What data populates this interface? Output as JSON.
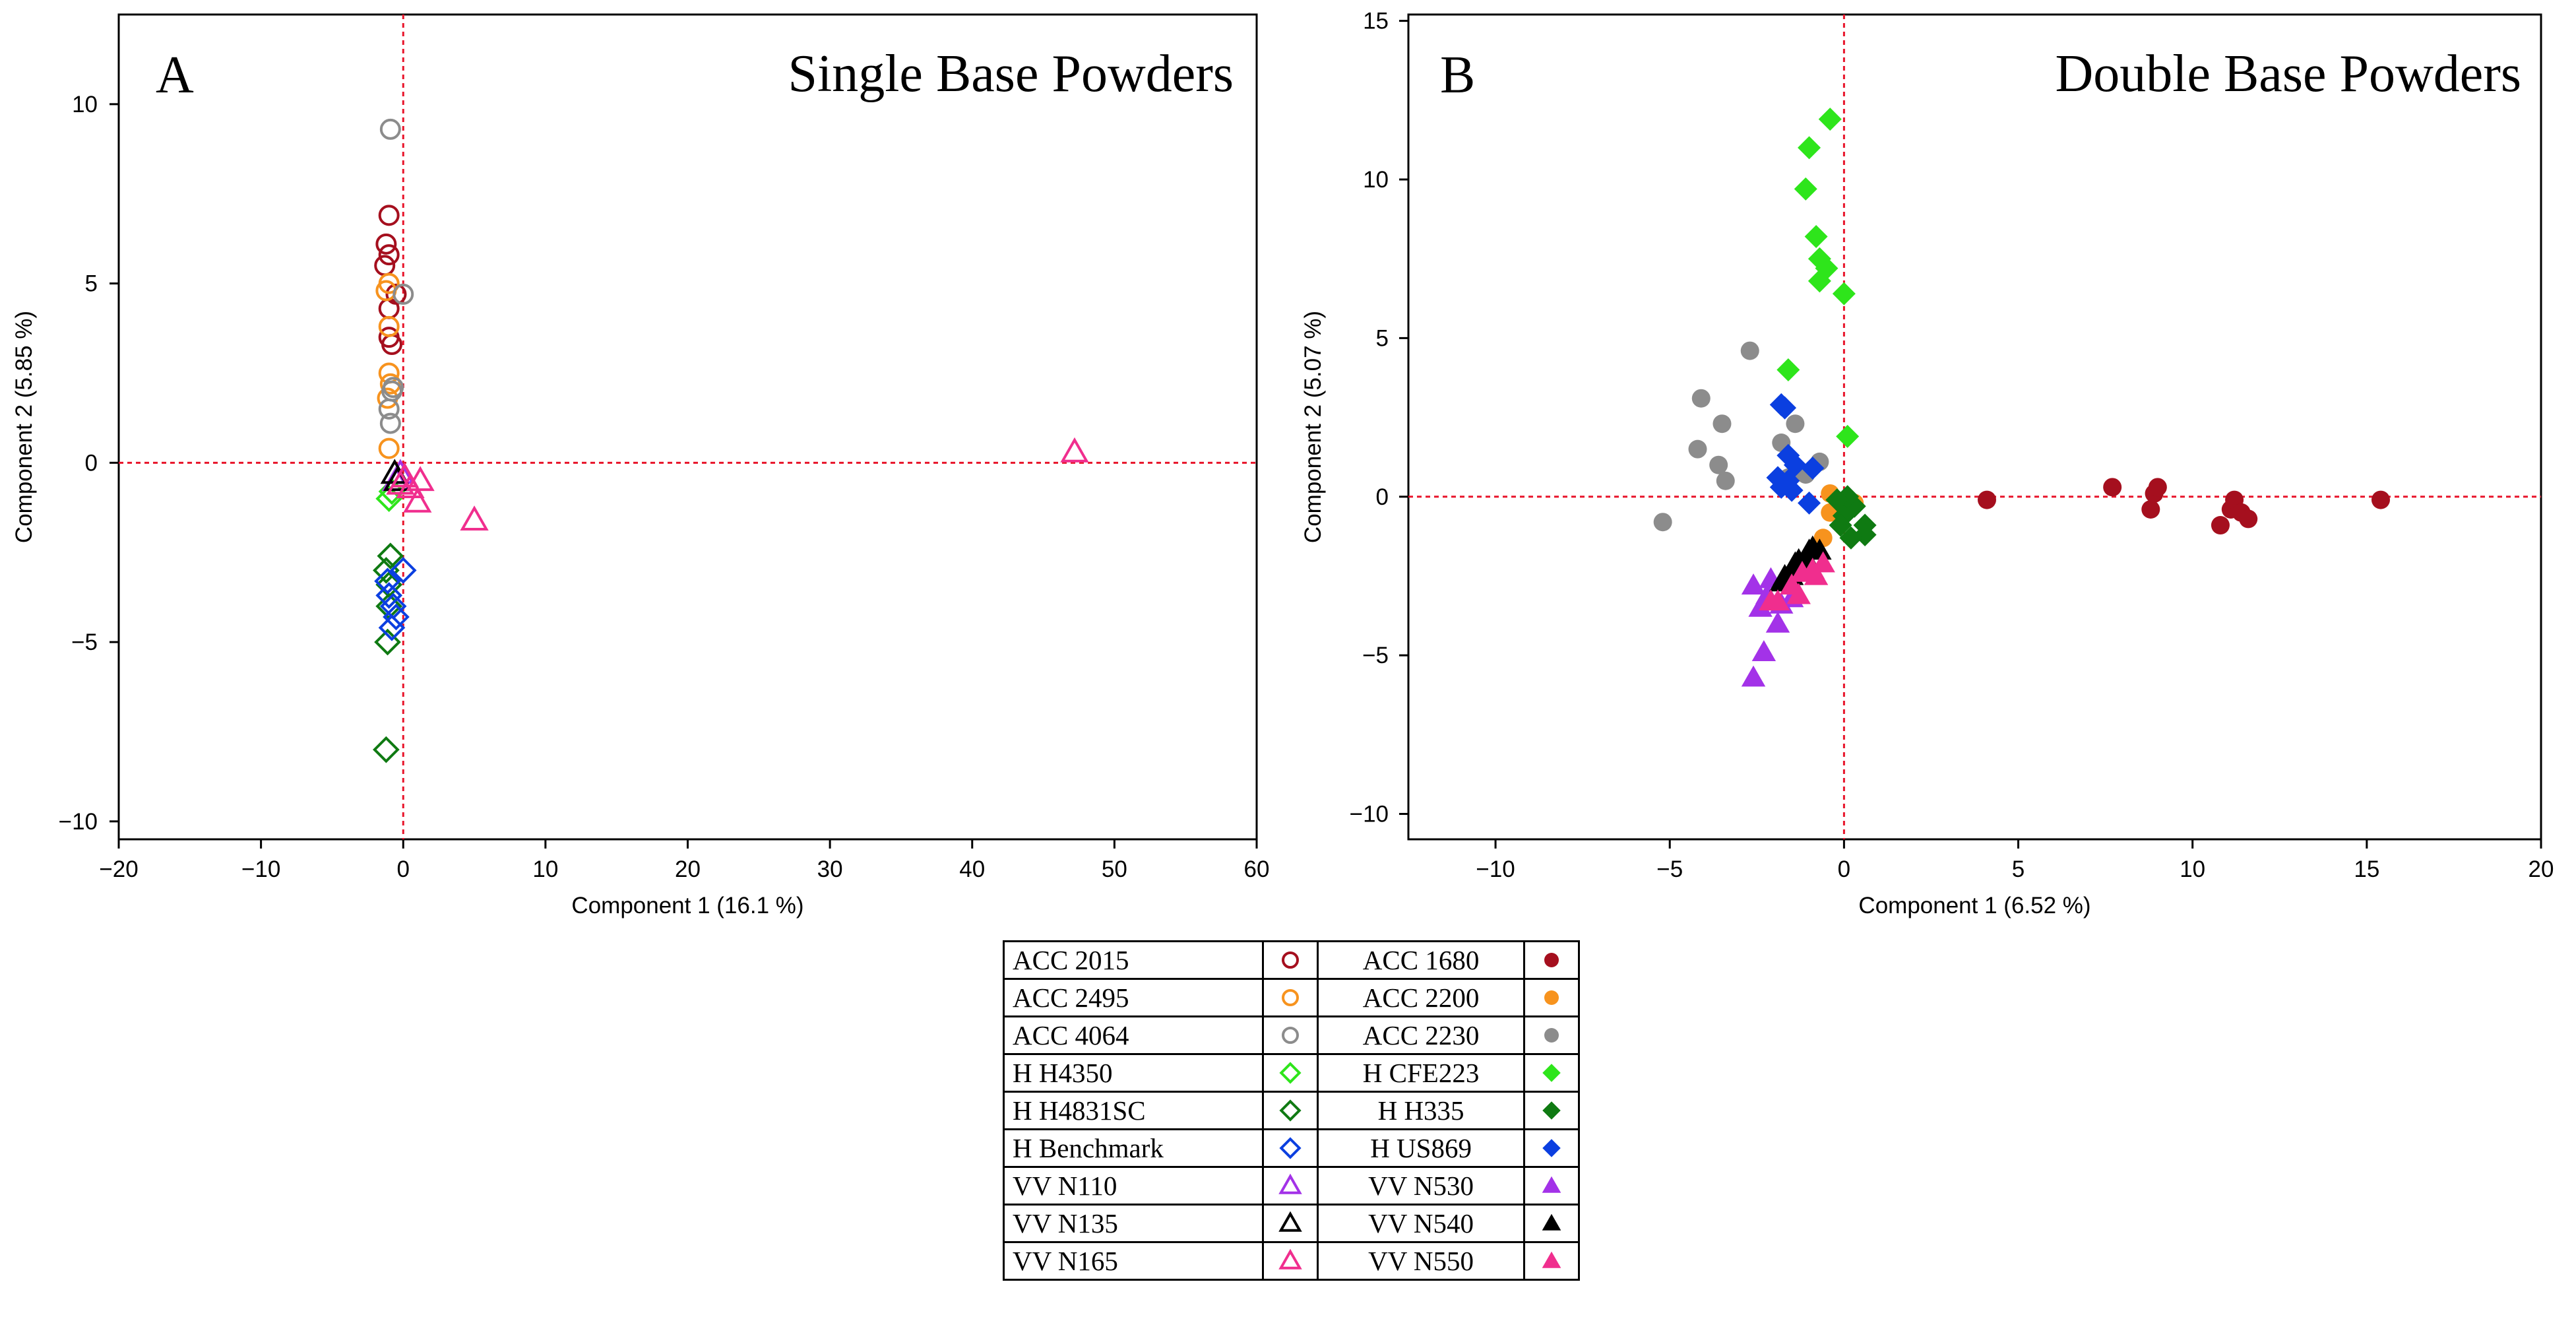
{
  "chart_data": [
    {
      "panel": "A",
      "title": "Single Base Powders",
      "type": "scatter",
      "xlabel": "Component 1  (16.1 %)",
      "ylabel": "Component 2  (5.85 %)",
      "xlim": [
        -20,
        60
      ],
      "ylim": [
        -10.5,
        12.5
      ],
      "xticks": [
        -20,
        -10,
        0,
        10,
        20,
        30,
        40,
        50,
        60
      ],
      "yticks": [
        -10,
        -5,
        0,
        5,
        10
      ],
      "xtick_labels": [
        "−20",
        "−10",
        "0",
        "10",
        "20",
        "30",
        "40",
        "50",
        "60"
      ],
      "ytick_labels": [
        "−10",
        "−5",
        "0",
        "5",
        "10"
      ],
      "reference_lines": {
        "x": 0,
        "y": 0,
        "color": "#e8142a",
        "style": "dotted"
      },
      "series": [
        {
          "name": "ACC 2015",
          "points": [
            [
              -1,
              6.9
            ],
            [
              -1.2,
              6.1
            ],
            [
              -1,
              5.8
            ],
            [
              -1.3,
              5.5
            ],
            [
              -0.5,
              4.7
            ],
            [
              -1,
              4.3
            ],
            [
              -0.8,
              3.3
            ],
            [
              -1,
              3.5
            ]
          ]
        },
        {
          "name": "ACC 2495",
          "points": [
            [
              -1,
              5.0
            ],
            [
              -1.2,
              4.8
            ],
            [
              -1,
              3.8
            ],
            [
              -1,
              2.5
            ],
            [
              -1.1,
              1.8
            ],
            [
              -1,
              0.4
            ],
            [
              -0.9,
              2.2
            ]
          ]
        },
        {
          "name": "ACC 4064",
          "points": [
            [
              -0.9,
              9.3
            ],
            [
              0,
              4.7
            ],
            [
              -0.7,
              2.1
            ],
            [
              -1,
              1.5
            ],
            [
              -0.9,
              1.1
            ],
            [
              -0.8,
              2.0
            ]
          ]
        },
        {
          "name": "H H4350",
          "points": [
            [
              -1,
              -1.0
            ],
            [
              -0.8,
              -0.8
            ]
          ]
        },
        {
          "name": "H H4831SC",
          "points": [
            [
              -1.2,
              -8.0
            ],
            [
              -1.1,
              -5.0
            ],
            [
              -1,
              -4.0
            ],
            [
              -1,
              -3.4
            ],
            [
              -0.9,
              -2.6
            ],
            [
              -1.2,
              -3.0
            ]
          ]
        },
        {
          "name": "H Benchmark",
          "points": [
            [
              0,
              -3.0
            ],
            [
              -0.8,
              -4.6
            ],
            [
              -0.5,
              -4.3
            ],
            [
              -1,
              -3.7
            ],
            [
              -0.7,
              -4.0
            ],
            [
              -1.1,
              -3.3
            ]
          ]
        },
        {
          "name": "VV N110",
          "points": [
            [
              -0.5,
              -0.5
            ],
            [
              -0.2,
              -0.3
            ]
          ]
        },
        {
          "name": "VV N135",
          "points": [
            [
              -0.6,
              -0.3
            ],
            [
              -0.4,
              -0.5
            ]
          ]
        },
        {
          "name": "VV N165",
          "points": [
            [
              47.2,
              0.3
            ],
            [
              5,
              -1.6
            ],
            [
              1,
              -1.1
            ],
            [
              0.5,
              -0.7
            ],
            [
              1.2,
              -0.5
            ],
            [
              0.1,
              -0.4
            ],
            [
              -0.2,
              -0.6
            ]
          ]
        }
      ]
    },
    {
      "panel": "B",
      "title": "Double Base Powders",
      "type": "scatter",
      "xlabel": "Component 1  (6.52 %)",
      "ylabel": "Component 2  (5.07 %)",
      "xlim": [
        -12.5,
        20
      ],
      "ylim": [
        -10.8,
        15.2
      ],
      "xticks": [
        -10,
        -5,
        0,
        5,
        10,
        15,
        20
      ],
      "yticks": [
        -10,
        -5,
        0,
        5,
        10,
        15
      ],
      "xtick_labels": [
        "−10",
        "−5",
        "0",
        "5",
        "10",
        "15",
        "20"
      ],
      "ytick_labels": [
        "−10",
        "−5",
        "0",
        "5",
        "10",
        "15"
      ],
      "reference_lines": {
        "x": 0,
        "y": 0,
        "color": "#e8142a",
        "style": "dotted"
      },
      "series": [
        {
          "name": "ACC 1680",
          "points": [
            [
              4.1,
              -0.1
            ],
            [
              7.7,
              0.3
            ],
            [
              8.8,
              -0.4
            ],
            [
              8.9,
              0.1
            ],
            [
              9,
              0.3
            ],
            [
              10.8,
              -0.9
            ],
            [
              11.1,
              -0.4
            ],
            [
              11.2,
              -0.1
            ],
            [
              11.4,
              -0.5
            ],
            [
              11.6,
              -0.7
            ],
            [
              15.4,
              -0.1
            ]
          ]
        },
        {
          "name": "ACC 2200",
          "points": [
            [
              -0.4,
              0.1
            ],
            [
              -0.1,
              -0.3
            ],
            [
              0.3,
              -0.2
            ],
            [
              -0.6,
              -1.3
            ],
            [
              -0.4,
              -0.5
            ],
            [
              -0.1,
              -0.6
            ]
          ]
        },
        {
          "name": "ACC 2230",
          "points": [
            [
              -2.7,
              4.6
            ],
            [
              -4.1,
              3.1
            ],
            [
              -4.2,
              1.5
            ],
            [
              -3.5,
              2.3
            ],
            [
              -3.6,
              1.0
            ],
            [
              -3.4,
              0.5
            ],
            [
              -5.2,
              -0.8
            ],
            [
              -1.8,
              1.7
            ],
            [
              -1.4,
              2.3
            ],
            [
              -0.7,
              1.1
            ],
            [
              -1.1,
              0.7
            ],
            [
              -1.6,
              0.6
            ]
          ]
        },
        {
          "name": "H CFE223",
          "points": [
            [
              -0.4,
              11.9
            ],
            [
              -1,
              11.0
            ],
            [
              -1.1,
              9.7
            ],
            [
              -0.8,
              8.2
            ],
            [
              -0.7,
              7.5
            ],
            [
              -0.5,
              7.2
            ],
            [
              -0.7,
              6.8
            ],
            [
              0,
              6.4
            ],
            [
              -1.6,
              4.0
            ],
            [
              0.1,
              1.9
            ]
          ]
        },
        {
          "name": "H H335",
          "points": [
            [
              0.6,
              -0.9
            ],
            [
              0.6,
              -1.2
            ],
            [
              0.2,
              -1.3
            ],
            [
              0,
              -0.6
            ],
            [
              0.3,
              -0.3
            ],
            [
              0.1,
              0.0
            ],
            [
              -0.2,
              -0.1
            ],
            [
              -0.1,
              -0.9
            ]
          ]
        },
        {
          "name": "H US869",
          "points": [
            [
              -1.8,
              2.9
            ],
            [
              -1.7,
              2.8
            ],
            [
              -1.6,
              1.3
            ],
            [
              -1.9,
              0.6
            ],
            [
              -1.8,
              0.3
            ],
            [
              -1.5,
              0.2
            ],
            [
              -1.4,
              1.0
            ],
            [
              -0.9,
              0.9
            ],
            [
              -1,
              -0.2
            ],
            [
              -1.6,
              0.5
            ]
          ]
        },
        {
          "name": "VV N530",
          "points": [
            [
              -2.6,
              -5.7
            ],
            [
              -2.3,
              -4.9
            ],
            [
              -2.6,
              -2.8
            ],
            [
              -2.1,
              -2.6
            ],
            [
              -1.9,
              -4.0
            ],
            [
              -1.8,
              -3.4
            ],
            [
              -2.2,
              -3.1
            ],
            [
              -1.5,
              -3.2
            ],
            [
              -2.4,
              -3.5
            ]
          ]
        },
        {
          "name": "VV N540",
          "points": [
            [
              -1.8,
              -2.7
            ],
            [
              -1.7,
              -2.5
            ],
            [
              -1.5,
              -2.3
            ],
            [
              -1.4,
              -2.1
            ],
            [
              -1.3,
              -2.0
            ],
            [
              -1.1,
              -1.9
            ],
            [
              -1.0,
              -1.7
            ],
            [
              -0.9,
              -1.6
            ],
            [
              -0.7,
              -1.7
            ],
            [
              -1.5,
              -2.5
            ]
          ]
        },
        {
          "name": "VV N550",
          "points": [
            [
              -2.1,
              -3.3
            ],
            [
              -1.9,
              -3.3
            ],
            [
              -1.3,
              -3.1
            ],
            [
              -1.2,
              -2.4
            ],
            [
              -0.9,
              -2.3
            ],
            [
              -0.6,
              -2.1
            ],
            [
              -0.8,
              -2.5
            ],
            [
              -1.5,
              -2.8
            ]
          ]
        }
      ]
    }
  ],
  "panels": {
    "a": {
      "letter": "A",
      "title": "Single Base Powders"
    },
    "b": {
      "letter": "B",
      "title": "Double Base Powders"
    }
  },
  "legend": {
    "rows": [
      {
        "left": "ACC 2015",
        "left_symbol": "circle-open",
        "left_color": "#a50f1e",
        "right": "ACC 1680",
        "right_symbol": "circle-filled",
        "right_color": "#a50f1e"
      },
      {
        "left": "ACC 2495",
        "left_symbol": "circle-open",
        "left_color": "#f7931e",
        "right": "ACC 2200",
        "right_symbol": "circle-filled",
        "right_color": "#f7931e"
      },
      {
        "left": "ACC 4064",
        "left_symbol": "circle-open",
        "left_color": "#8c8c8c",
        "right": "ACC 2230",
        "right_symbol": "circle-filled",
        "right_color": "#8c8c8c"
      },
      {
        "left": "H H4350",
        "left_symbol": "diamond-open",
        "left_color": "#2ee51b",
        "right": "H CFE223",
        "right_symbol": "diamond-filled",
        "right_color": "#2ee51b"
      },
      {
        "left": "H H4831SC",
        "left_symbol": "diamond-open",
        "left_color": "#0f7a12",
        "right": "H H335",
        "right_symbol": "diamond-filled",
        "right_color": "#0f7a12"
      },
      {
        "left": "H Benchmark",
        "left_symbol": "diamond-open",
        "left_color": "#0b3fe0",
        "right": "H US869",
        "right_symbol": "diamond-filled",
        "right_color": "#0b3fe0"
      },
      {
        "left": "VV N110",
        "left_symbol": "triangle-open",
        "left_color": "#a332e8",
        "right": "VV N530",
        "right_symbol": "triangle-filled",
        "right_color": "#a332e8"
      },
      {
        "left": "VV N135",
        "left_symbol": "triangle-open",
        "left_color": "#000000",
        "right": "VV N540",
        "right_symbol": "triangle-filled",
        "right_color": "#000000"
      },
      {
        "left": "VV N165",
        "left_symbol": "triangle-open",
        "left_color": "#f02e8e",
        "right": "VV N550",
        "right_symbol": "triangle-filled",
        "right_color": "#f02e8e"
      }
    ]
  },
  "colors": {
    "reference_line": "#e8142a",
    "axis": "#000000"
  }
}
